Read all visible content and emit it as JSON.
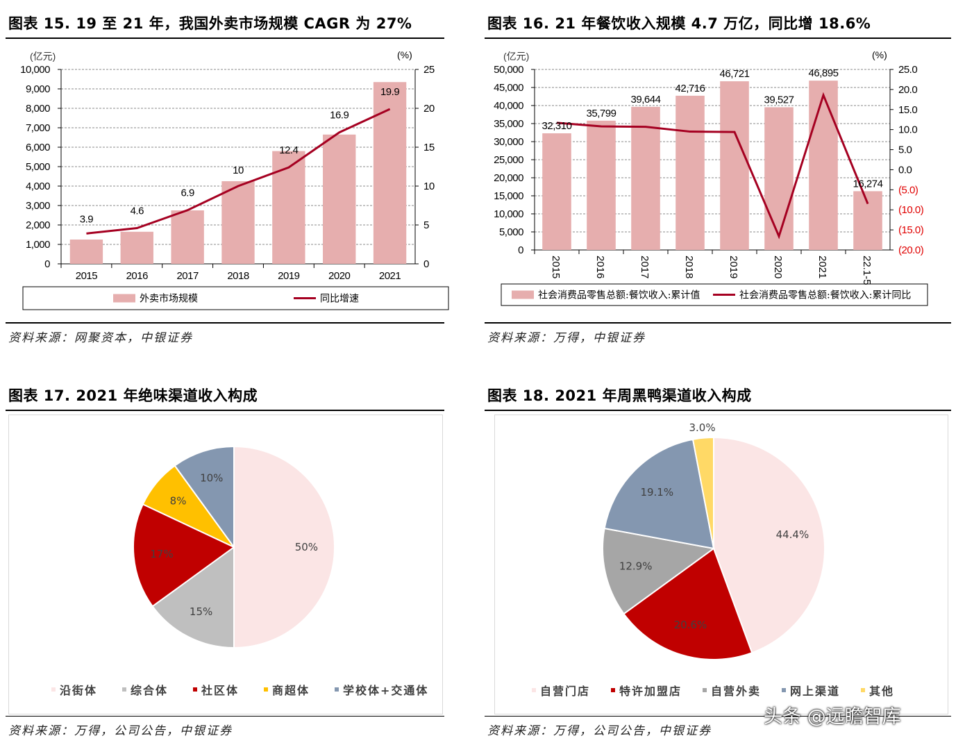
{
  "sections": [
    {
      "title": "图表 15. 19 至 21 年，我国外卖市场规模 CAGR 为 27%",
      "source": "资料来源：网聚资本，中银证券"
    },
    {
      "title": "图表 16. 21 年餐饮收入规模 4.7 万亿，同比增 18.6%",
      "source": "资料来源：万得，中银证券"
    },
    {
      "title": "图表 17. 2021 年绝味渠道收入构成",
      "source": "资料来源：万得，公司公告，中银证券"
    },
    {
      "title": "图表 18. 2021 年周黑鸭渠道收入构成",
      "source": "资料来源：万得，公司公告，中银证券"
    }
  ],
  "watermark": "头条 @远瞻智库",
  "colors": {
    "bar": "#e6aeae",
    "line": "#a50021",
    "neg": "#e00000"
  },
  "chart_data": [
    {
      "type": "bar+line",
      "categories": [
        "2015",
        "2016",
        "2017",
        "2018",
        "2019",
        "2020",
        "2021"
      ],
      "series": [
        {
          "name": "外卖市场规模",
          "axis": "left",
          "values": [
            1250,
            1650,
            2750,
            4250,
            5800,
            6650,
            9350
          ]
        },
        {
          "name": "同比增速",
          "axis": "right",
          "values": [
            3.9,
            4.6,
            6.9,
            10,
            12.4,
            16.9,
            19.9
          ],
          "labels": [
            "3.9",
            "4.6",
            "6.9",
            "10",
            "12.4",
            "16.9",
            "19.9"
          ]
        }
      ],
      "ylabel_left": "(亿元)",
      "ylabel_right": "(%)",
      "ylim_left": [
        0,
        10000
      ],
      "ylim_right": [
        0,
        25
      ],
      "ticks_left": [
        "0",
        "1,000",
        "2,000",
        "3,000",
        "4,000",
        "5,000",
        "6,000",
        "7,000",
        "8,000",
        "9,000",
        "10,000"
      ],
      "ticks_right": [
        "0",
        "5",
        "10",
        "15",
        "20",
        "25"
      ],
      "grid": true,
      "legend": "bottom"
    },
    {
      "type": "bar+line",
      "categories": [
        "2015",
        "2016",
        "2017",
        "2018",
        "2019",
        "2020",
        "2021",
        "22.1-5"
      ],
      "series": [
        {
          "name": "社会消费品零售总额:餐饮收入:累计值",
          "axis": "left",
          "values": [
            32310,
            35799,
            39644,
            42716,
            46721,
            39527,
            46895,
            16274
          ],
          "labels": [
            "32,310",
            "35,799",
            "39,644",
            "42,716",
            "46,721",
            "39,527",
            "46,895",
            "16,274"
          ]
        },
        {
          "name": "社会消费品零售总额:餐饮收入:累计同比",
          "axis": "right",
          "values": [
            11.7,
            10.8,
            10.7,
            9.5,
            9.4,
            -16.6,
            18.6,
            -8.5
          ]
        }
      ],
      "ylabel_left": "(亿元)",
      "ylabel_right": "(%)",
      "ylim_left": [
        0,
        50000
      ],
      "ylim_right": [
        -20,
        25
      ],
      "ticks_left": [
        "0",
        "5,000",
        "10,000",
        "15,000",
        "20,000",
        "25,000",
        "30,000",
        "35,000",
        "40,000",
        "45,000",
        "50,000"
      ],
      "ticks_right": [
        "(20.0)",
        "(15.0)",
        "(10.0)",
        "(5.0)",
        "0.0",
        "5.0",
        "10.0",
        "15.0",
        "20.0",
        "25.0"
      ],
      "grid": true,
      "legend": "bottom"
    },
    {
      "type": "pie",
      "labels": [
        "沿街体",
        "综合体",
        "社区体",
        "商超体",
        "学校体+交通体"
      ],
      "values": [
        50,
        15,
        17,
        8,
        10
      ],
      "value_labels": [
        "50%",
        "15%",
        "17%",
        "8%",
        "10%"
      ],
      "colors": [
        "#fbe5e5",
        "#bfbfbf",
        "#c00000",
        "#ffc000",
        "#8497b0"
      ],
      "legend": "bottom"
    },
    {
      "type": "pie",
      "labels": [
        "自营门店",
        "特许加盟店",
        "自营外卖",
        "网上渠道",
        "其他"
      ],
      "values": [
        44.4,
        20.6,
        12.9,
        19.1,
        3.0
      ],
      "value_labels": [
        "44.4%",
        "20.6%",
        "12.9%",
        "19.1%",
        "3.0%"
      ],
      "colors": [
        "#fbe5e5",
        "#c00000",
        "#a6a6a6",
        "#8497b0",
        "#ffd966"
      ],
      "legend": "bottom"
    }
  ]
}
